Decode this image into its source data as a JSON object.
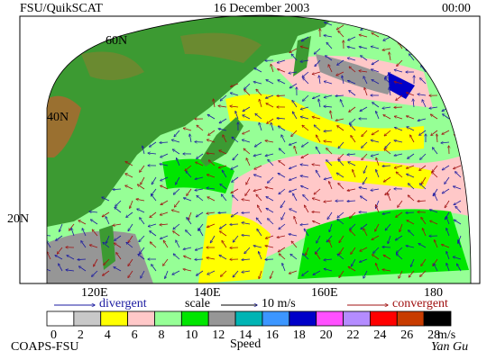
{
  "header": {
    "left": "FSU/QuikSCAT",
    "date": "16 December 2003",
    "time": "00:00"
  },
  "map": {
    "lat_labels": [
      "60N",
      "40N",
      "20N"
    ],
    "lon_labels": [
      "120E",
      "140E",
      "160E",
      "180"
    ]
  },
  "legend": {
    "divergent": "divergent",
    "scale": "scale",
    "scale_value": "10 m/s",
    "convergent": "convergent"
  },
  "colorbar": {
    "ticks": [
      0,
      2,
      4,
      6,
      8,
      10,
      12,
      14,
      16,
      18,
      20,
      22,
      24,
      26,
      28
    ],
    "unit": "m/s",
    "label": "Speed",
    "colors": [
      "#ffffff",
      "#c8c8c8",
      "#ffff00",
      "#ffc8c8",
      "#96ff96",
      "#00e600",
      "#969696",
      "#00b4b4",
      "#3c96ff",
      "#0000c8",
      "#ff50ff",
      "#b48cff",
      "#ff0000",
      "#c83c00",
      "#000000"
    ]
  },
  "footer": {
    "left": "COAPS-FSU",
    "signature": "Yan Gu"
  }
}
